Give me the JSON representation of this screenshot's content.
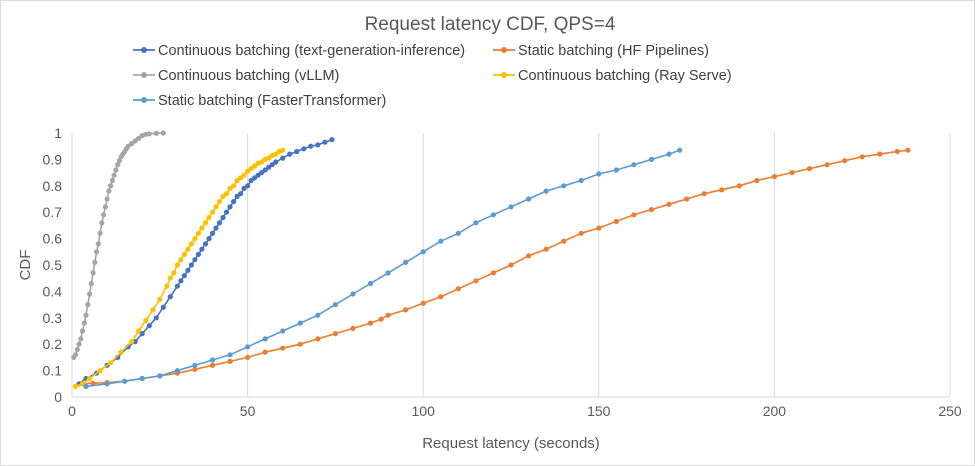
{
  "chart_data": {
    "type": "line",
    "title": "Request latency CDF, QPS=4",
    "xlabel": "Request latency (seconds)",
    "ylabel": "CDF",
    "xlim": [
      0,
      250
    ],
    "ylim": [
      0,
      1
    ],
    "x_ticks": [
      "0",
      "50",
      "100",
      "150",
      "200",
      "250"
    ],
    "y_ticks": [
      "0",
      "0.1",
      "0.2",
      "0.3",
      "0.4",
      "0.5",
      "0.6",
      "0.7",
      "0.8",
      "0.9",
      "1"
    ],
    "grid": "vertical",
    "legend_position": "top",
    "series": [
      {
        "name": "Continuous batching (text-generation-inference)",
        "color": "#4472C4",
        "x": [
          2,
          4,
          7,
          10,
          13,
          16,
          18,
          20,
          22,
          24,
          26,
          28,
          30,
          31,
          32,
          33,
          34,
          35,
          36,
          37,
          38,
          39,
          40,
          41,
          42,
          43,
          44,
          45,
          46,
          47,
          48,
          49,
          50,
          51,
          52,
          53,
          54,
          55,
          56,
          57,
          58,
          60,
          62,
          64,
          66,
          68,
          70,
          72,
          74
        ],
        "y": [
          0.05,
          0.07,
          0.09,
          0.12,
          0.15,
          0.19,
          0.21,
          0.24,
          0.27,
          0.3,
          0.34,
          0.38,
          0.42,
          0.44,
          0.46,
          0.48,
          0.5,
          0.52,
          0.54,
          0.56,
          0.58,
          0.6,
          0.62,
          0.64,
          0.66,
          0.68,
          0.7,
          0.72,
          0.74,
          0.76,
          0.77,
          0.79,
          0.8,
          0.82,
          0.83,
          0.84,
          0.85,
          0.86,
          0.87,
          0.88,
          0.89,
          0.905,
          0.92,
          0.93,
          0.94,
          0.95,
          0.955,
          0.965,
          0.975
        ]
      },
      {
        "name": "Static batching (HF Pipelines)",
        "color": "#ED7D31",
        "x": [
          3,
          6,
          10,
          15,
          20,
          25,
          30,
          35,
          40,
          45,
          50,
          55,
          60,
          65,
          70,
          75,
          80,
          85,
          88,
          90,
          95,
          100,
          105,
          110,
          115,
          120,
          125,
          130,
          135,
          140,
          145,
          150,
          155,
          160,
          165,
          170,
          175,
          180,
          185,
          190,
          195,
          200,
          205,
          210,
          215,
          220,
          225,
          230,
          235,
          238
        ],
        "y": [
          0.05,
          0.052,
          0.055,
          0.06,
          0.07,
          0.08,
          0.09,
          0.105,
          0.12,
          0.135,
          0.15,
          0.17,
          0.185,
          0.2,
          0.22,
          0.24,
          0.26,
          0.28,
          0.295,
          0.31,
          0.33,
          0.355,
          0.38,
          0.41,
          0.44,
          0.47,
          0.5,
          0.535,
          0.56,
          0.59,
          0.62,
          0.64,
          0.665,
          0.69,
          0.71,
          0.73,
          0.75,
          0.77,
          0.785,
          0.8,
          0.82,
          0.835,
          0.85,
          0.865,
          0.88,
          0.895,
          0.91,
          0.92,
          0.93,
          0.935
        ]
      },
      {
        "name": "Continuous batching (vLLM)",
        "color": "#A5A5A5",
        "x": [
          0.5,
          1,
          1.5,
          2,
          2.5,
          3,
          3.5,
          4,
          4.5,
          5,
          5.5,
          6,
          6.5,
          7,
          7.5,
          8,
          8.5,
          9,
          9.5,
          10,
          10.5,
          11,
          11.5,
          12,
          12.5,
          13,
          13.5,
          14,
          14.5,
          15,
          15.5,
          16,
          17,
          18,
          19,
          20,
          21,
          22,
          24,
          26
        ],
        "y": [
          0.15,
          0.16,
          0.18,
          0.2,
          0.22,
          0.25,
          0.28,
          0.31,
          0.35,
          0.39,
          0.43,
          0.47,
          0.51,
          0.55,
          0.58,
          0.62,
          0.66,
          0.69,
          0.72,
          0.75,
          0.78,
          0.8,
          0.82,
          0.84,
          0.86,
          0.88,
          0.895,
          0.91,
          0.92,
          0.93,
          0.94,
          0.95,
          0.96,
          0.97,
          0.98,
          0.99,
          0.995,
          0.997,
          0.999,
          1.0
        ]
      },
      {
        "name": "Continuous batching (Ray Serve)",
        "color": "#FFC000",
        "x": [
          1,
          3,
          5,
          8,
          11,
          14,
          17,
          19,
          21,
          23,
          25,
          27,
          28,
          29,
          30,
          31,
          32,
          33,
          34,
          35,
          36,
          37,
          38,
          39,
          40,
          41,
          42,
          43,
          44,
          45,
          46,
          47,
          48,
          49,
          50,
          51,
          52,
          53,
          54,
          55,
          56,
          57,
          58,
          59,
          60
        ],
        "y": [
          0.04,
          0.05,
          0.07,
          0.1,
          0.13,
          0.17,
          0.21,
          0.25,
          0.29,
          0.33,
          0.37,
          0.42,
          0.45,
          0.47,
          0.5,
          0.52,
          0.54,
          0.56,
          0.58,
          0.6,
          0.62,
          0.64,
          0.66,
          0.68,
          0.7,
          0.72,
          0.74,
          0.76,
          0.77,
          0.79,
          0.8,
          0.82,
          0.83,
          0.84,
          0.855,
          0.865,
          0.875,
          0.885,
          0.89,
          0.9,
          0.905,
          0.915,
          0.92,
          0.93,
          0.935
        ]
      },
      {
        "name": "Static batching (FasterTransformer)",
        "color": "#5B9BD5",
        "x": [
          4,
          10,
          15,
          20,
          25,
          30,
          35,
          40,
          45,
          50,
          55,
          60,
          65,
          70,
          75,
          80,
          85,
          90,
          95,
          100,
          105,
          110,
          115,
          120,
          125,
          130,
          135,
          140,
          145,
          150,
          155,
          160,
          165,
          170,
          173
        ],
        "y": [
          0.04,
          0.05,
          0.06,
          0.07,
          0.08,
          0.1,
          0.12,
          0.14,
          0.16,
          0.19,
          0.22,
          0.25,
          0.28,
          0.31,
          0.35,
          0.39,
          0.43,
          0.47,
          0.51,
          0.55,
          0.59,
          0.62,
          0.66,
          0.69,
          0.72,
          0.75,
          0.78,
          0.8,
          0.82,
          0.845,
          0.86,
          0.88,
          0.9,
          0.92,
          0.935
        ]
      }
    ]
  }
}
